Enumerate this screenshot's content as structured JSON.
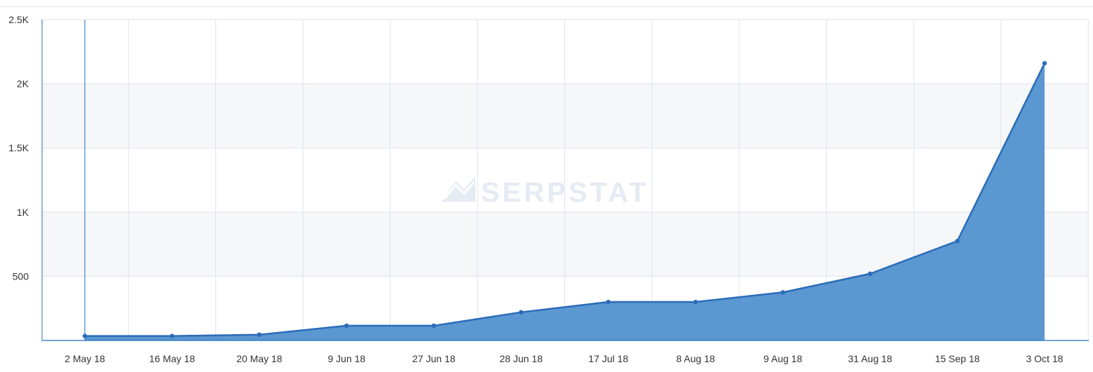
{
  "chart_data": {
    "type": "area",
    "x": [
      "2 May 18",
      "16 May 18",
      "20 May 18",
      "9 Jun 18",
      "27 Jun 18",
      "28 Jun 18",
      "17 Jul 18",
      "8 Aug 18",
      "9 Aug 18",
      "31 Aug 18",
      "15 Sep 18",
      "3 Oct 18"
    ],
    "series": [
      {
        "values": [
          35,
          35,
          45,
          115,
          115,
          220,
          300,
          300,
          375,
          520,
          775,
          2160
        ]
      }
    ],
    "yticks": [
      "500",
      "1K",
      "1.5K",
      "2K",
      "2.5K"
    ],
    "ylim": [
      0,
      2500
    ],
    "grid": true,
    "watermark": "SERPSTAT",
    "colors": {
      "line": "#2b6cb8",
      "fill": "#5b97d0",
      "band": "#f6f7f9",
      "grid": "#dfe3ee",
      "axis": "#1f6fc4",
      "label": "#333333",
      "watermark": "#e6ebf3"
    }
  }
}
